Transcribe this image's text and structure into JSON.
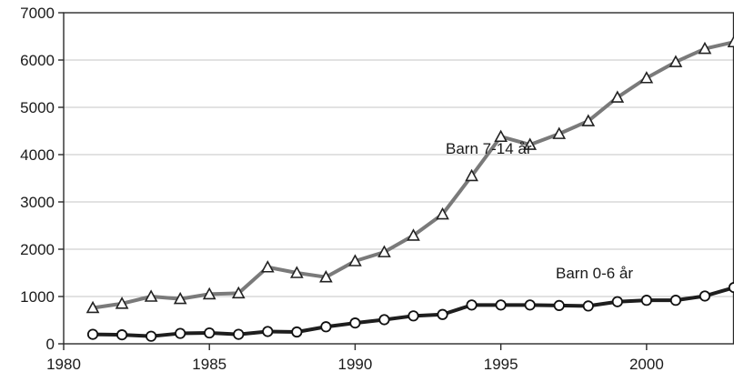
{
  "chart_data": {
    "type": "line",
    "title": "",
    "xlabel": "",
    "ylabel": "",
    "xlim": [
      1980,
      2003
    ],
    "ylim": [
      0,
      7000
    ],
    "x_ticks": [
      1980,
      1985,
      1990,
      1995,
      2000
    ],
    "y_ticks": [
      0,
      1000,
      2000,
      3000,
      4000,
      5000,
      6000,
      7000
    ],
    "grid": "horizontal",
    "legend": "none",
    "x": [
      1981,
      1982,
      1983,
      1984,
      1985,
      1986,
      1987,
      1988,
      1989,
      1990,
      1991,
      1992,
      1993,
      1994,
      1995,
      1996,
      1997,
      1998,
      1999,
      2000,
      2001,
      2002,
      2003
    ],
    "series": [
      {
        "name": "Barn 7-14 år",
        "marker": "triangle",
        "color": "#7a7a7a",
        "values": [
          760,
          850,
          1000,
          950,
          1050,
          1070,
          1620,
          1500,
          1410,
          1750,
          1940,
          2290,
          2740,
          3550,
          4380,
          4210,
          4440,
          4710,
          5210,
          5620,
          5960,
          6240,
          6380
        ]
      },
      {
        "name": "Barn 0-6 år",
        "marker": "circle",
        "color": "#1e1e1e",
        "values": [
          200,
          190,
          160,
          220,
          230,
          200,
          260,
          250,
          360,
          440,
          510,
          590,
          620,
          820,
          820,
          820,
          810,
          800,
          890,
          920,
          920,
          1010,
          1190
        ]
      }
    ]
  }
}
